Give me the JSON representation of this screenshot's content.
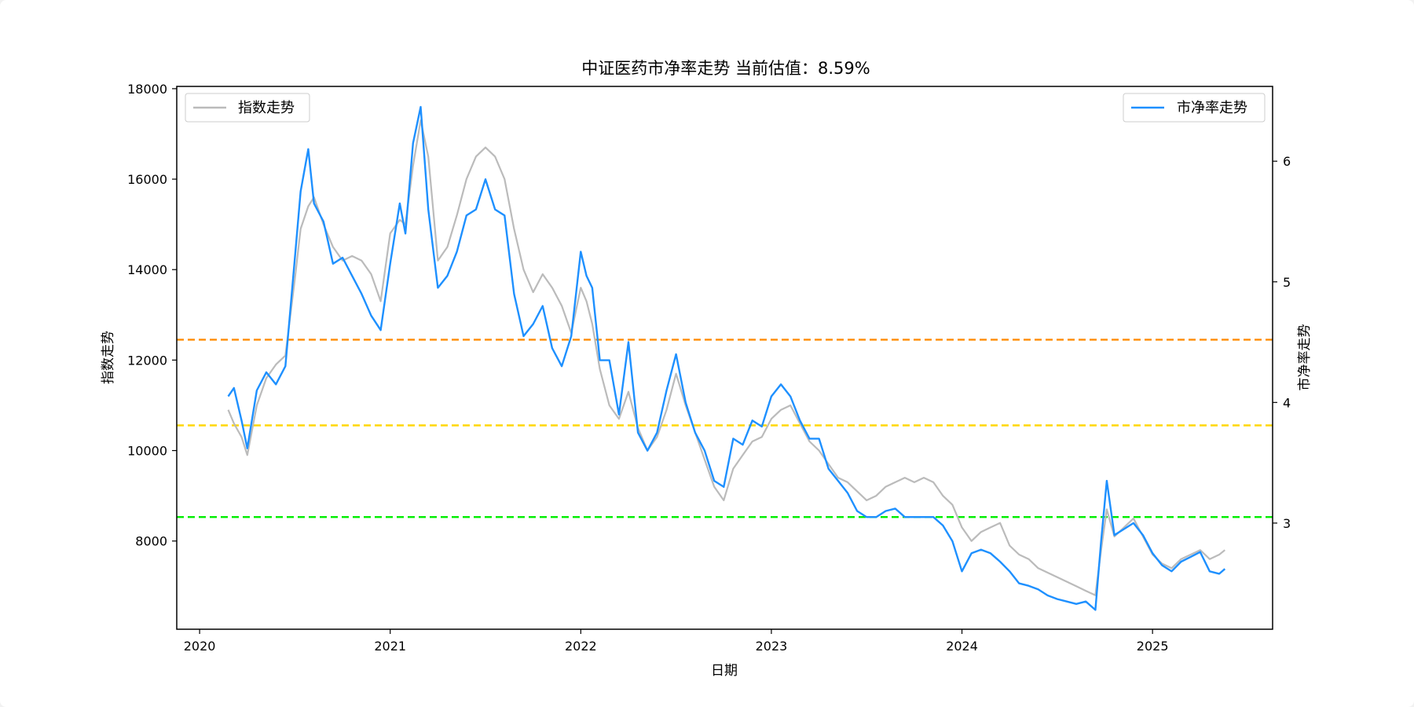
{
  "chart_data": {
    "type": "line",
    "title": "中证医药市净率走势 当前估值：8.59%",
    "xlabel": "日期",
    "ylabel_left": "指数走势",
    "ylabel_right": "市净率走势",
    "x_ticks": [
      "2020",
      "2021",
      "2022",
      "2023",
      "2024",
      "2025"
    ],
    "xlim": [
      2019.88,
      2025.63
    ],
    "ylim_left": [
      6050,
      18050
    ],
    "ylim_right": [
      2.12,
      6.62
    ],
    "y_ticks_left": [
      8000,
      10000,
      12000,
      14000,
      16000,
      18000
    ],
    "y_ticks_right": [
      3,
      4,
      5,
      6
    ],
    "grid": false,
    "legend_left": {
      "label": "指数走势",
      "placement": "upper-left"
    },
    "legend_right": {
      "label": "市净率走势",
      "placement": "upper-right"
    },
    "reference_lines": [
      {
        "name": "high",
        "axis": "right",
        "value": 4.52,
        "color": "#ff8c00"
      },
      {
        "name": "middle",
        "axis": "right",
        "value": 3.81,
        "color": "#ffd700"
      },
      {
        "name": "low",
        "axis": "right",
        "value": 3.05,
        "color": "#00ee00"
      }
    ],
    "series": [
      {
        "name": "指数走势",
        "axis": "left",
        "color": "#bbbbbb",
        "x": [
          2020.15,
          2020.18,
          2020.22,
          2020.25,
          2020.3,
          2020.35,
          2020.4,
          2020.45,
          2020.5,
          2020.53,
          2020.57,
          2020.6,
          2020.65,
          2020.7,
          2020.75,
          2020.8,
          2020.85,
          2020.9,
          2020.95,
          2021.0,
          2021.05,
          2021.08,
          2021.12,
          2021.16,
          2021.2,
          2021.25,
          2021.3,
          2021.35,
          2021.4,
          2021.45,
          2021.5,
          2021.55,
          2021.6,
          2021.65,
          2021.7,
          2021.75,
          2021.8,
          2021.85,
          2021.9,
          2021.95,
          2022.0,
          2022.03,
          2022.06,
          2022.1,
          2022.15,
          2022.2,
          2022.25,
          2022.3,
          2022.35,
          2022.4,
          2022.45,
          2022.5,
          2022.55,
          2022.6,
          2022.65,
          2022.7,
          2022.75,
          2022.8,
          2022.85,
          2022.9,
          2022.95,
          2023.0,
          2023.05,
          2023.1,
          2023.15,
          2023.2,
          2023.25,
          2023.3,
          2023.35,
          2023.4,
          2023.45,
          2023.5,
          2023.55,
          2023.6,
          2023.65,
          2023.7,
          2023.75,
          2023.8,
          2023.85,
          2023.9,
          2023.95,
          2024.0,
          2024.05,
          2024.1,
          2024.15,
          2024.2,
          2024.25,
          2024.3,
          2024.35,
          2024.4,
          2024.45,
          2024.5,
          2024.55,
          2024.6,
          2024.65,
          2024.7,
          2024.73,
          2024.76,
          2024.8,
          2024.85,
          2024.9,
          2024.95,
          2025.0,
          2025.05,
          2025.1,
          2025.15,
          2025.2,
          2025.25,
          2025.3,
          2025.35,
          2025.38
        ],
        "values": [
          10900,
          10600,
          10300,
          9900,
          11000,
          11600,
          11900,
          12100,
          13800,
          14900,
          15400,
          15600,
          15000,
          14500,
          14200,
          14300,
          14200,
          13900,
          13300,
          14800,
          15100,
          15000,
          16300,
          17300,
          16500,
          14200,
          14500,
          15200,
          16000,
          16500,
          16700,
          16500,
          16000,
          14900,
          14000,
          13500,
          13900,
          13600,
          13200,
          12600,
          13600,
          13300,
          12800,
          11800,
          11000,
          10700,
          11300,
          10500,
          10000,
          10300,
          10900,
          11700,
          11000,
          10400,
          9800,
          9200,
          8900,
          9600,
          9900,
          10200,
          10300,
          10700,
          10900,
          11000,
          10600,
          10200,
          10000,
          9700,
          9400,
          9300,
          9100,
          8900,
          9000,
          9200,
          9300,
          9400,
          9300,
          9400,
          9300,
          9000,
          8800,
          8300,
          8000,
          8200,
          8300,
          8400,
          7900,
          7700,
          7600,
          7400,
          7300,
          7200,
          7100,
          7000,
          6900,
          6800,
          7800,
          8700,
          8100,
          8300,
          8500,
          8100,
          7700,
          7500,
          7400,
          7600,
          7700,
          7800,
          7600,
          7700,
          7800
        ]
      },
      {
        "name": "市净率走势",
        "axis": "right",
        "color": "#1e90ff",
        "x": [
          2020.15,
          2020.18,
          2020.22,
          2020.25,
          2020.3,
          2020.35,
          2020.4,
          2020.45,
          2020.5,
          2020.53,
          2020.57,
          2020.6,
          2020.65,
          2020.7,
          2020.75,
          2020.8,
          2020.85,
          2020.9,
          2020.95,
          2021.0,
          2021.05,
          2021.08,
          2021.12,
          2021.16,
          2021.2,
          2021.25,
          2021.3,
          2021.35,
          2021.4,
          2021.45,
          2021.5,
          2021.55,
          2021.6,
          2021.65,
          2021.7,
          2021.75,
          2021.8,
          2021.85,
          2021.9,
          2021.95,
          2022.0,
          2022.03,
          2022.06,
          2022.1,
          2022.15,
          2022.2,
          2022.25,
          2022.3,
          2022.35,
          2022.4,
          2022.45,
          2022.5,
          2022.55,
          2022.6,
          2022.65,
          2022.7,
          2022.75,
          2022.8,
          2022.85,
          2022.9,
          2022.95,
          2023.0,
          2023.05,
          2023.1,
          2023.15,
          2023.2,
          2023.25,
          2023.3,
          2023.35,
          2023.4,
          2023.45,
          2023.5,
          2023.55,
          2023.6,
          2023.65,
          2023.7,
          2023.75,
          2023.8,
          2023.85,
          2023.9,
          2023.95,
          2024.0,
          2024.05,
          2024.1,
          2024.15,
          2024.2,
          2024.25,
          2024.3,
          2024.35,
          2024.4,
          2024.45,
          2024.5,
          2024.55,
          2024.6,
          2024.65,
          2024.7,
          2024.73,
          2024.76,
          2024.8,
          2024.85,
          2024.9,
          2024.95,
          2025.0,
          2025.05,
          2025.1,
          2025.15,
          2025.2,
          2025.25,
          2025.3,
          2025.35,
          2025.38
        ],
        "values": [
          4.05,
          4.12,
          3.85,
          3.62,
          4.1,
          4.25,
          4.15,
          4.3,
          5.2,
          5.75,
          6.1,
          5.65,
          5.5,
          5.15,
          5.2,
          5.05,
          4.9,
          4.72,
          4.6,
          5.15,
          5.65,
          5.4,
          6.15,
          6.45,
          5.6,
          4.95,
          5.05,
          5.25,
          5.55,
          5.6,
          5.85,
          5.6,
          5.55,
          4.9,
          4.55,
          4.65,
          4.8,
          4.45,
          4.3,
          4.55,
          5.25,
          5.05,
          4.95,
          4.35,
          4.35,
          3.9,
          4.5,
          3.75,
          3.6,
          3.75,
          4.1,
          4.4,
          4.0,
          3.75,
          3.6,
          3.35,
          3.3,
          3.7,
          3.65,
          3.85,
          3.8,
          4.05,
          4.15,
          4.05,
          3.85,
          3.7,
          3.7,
          3.45,
          3.35,
          3.25,
          3.1,
          3.05,
          3.05,
          3.1,
          3.12,
          3.05,
          3.05,
          3.05,
          3.05,
          2.98,
          2.85,
          2.6,
          2.75,
          2.78,
          2.75,
          2.68,
          2.6,
          2.5,
          2.48,
          2.45,
          2.4,
          2.37,
          2.35,
          2.33,
          2.35,
          2.28,
          2.85,
          3.35,
          2.9,
          2.95,
          3.0,
          2.9,
          2.75,
          2.65,
          2.6,
          2.68,
          2.72,
          2.76,
          2.6,
          2.58,
          2.62
        ]
      }
    ]
  }
}
